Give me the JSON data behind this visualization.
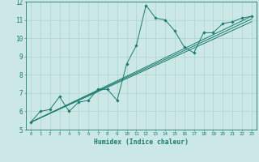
{
  "title": "",
  "xlabel": "Humidex (Indice chaleur)",
  "bg_color": "#cce8e6",
  "line_color": "#1a7a6e",
  "marker_color": "#1a7a6e",
  "grid_color": "#aad4d0",
  "xlim": [
    -0.5,
    23.5
  ],
  "ylim": [
    5,
    12
  ],
  "xtick_vals": [
    0,
    1,
    2,
    3,
    4,
    5,
    6,
    7,
    8,
    9,
    10,
    11,
    12,
    13,
    14,
    15,
    16,
    17,
    18,
    19,
    20,
    21,
    22,
    23
  ],
  "ytick_vals": [
    5,
    6,
    7,
    8,
    9,
    10,
    11,
    12
  ],
  "series": [
    [
      0,
      5.4
    ],
    [
      1,
      6.0
    ],
    [
      2,
      6.1
    ],
    [
      3,
      6.8
    ],
    [
      4,
      6.0
    ],
    [
      5,
      6.5
    ],
    [
      6,
      6.6
    ],
    [
      7,
      7.2
    ],
    [
      8,
      7.2
    ],
    [
      9,
      6.6
    ],
    [
      10,
      8.6
    ],
    [
      11,
      9.6
    ],
    [
      12,
      11.8
    ],
    [
      13,
      11.1
    ],
    [
      14,
      11.0
    ],
    [
      15,
      10.4
    ],
    [
      16,
      9.5
    ],
    [
      17,
      9.2
    ],
    [
      18,
      10.3
    ],
    [
      19,
      10.3
    ],
    [
      20,
      10.8
    ],
    [
      21,
      10.9
    ],
    [
      22,
      11.1
    ],
    [
      23,
      11.2
    ]
  ],
  "diagonal_lines": [
    [
      [
        0,
        5.4
      ],
      [
        23,
        11.2
      ]
    ],
    [
      [
        0,
        5.4
      ],
      [
        23,
        11.05
      ]
    ],
    [
      [
        0,
        5.4
      ],
      [
        23,
        10.9
      ]
    ]
  ]
}
